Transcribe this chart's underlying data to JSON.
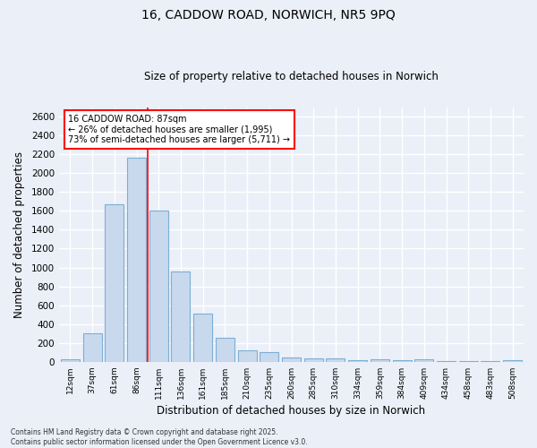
{
  "title_line1": "16, CADDOW ROAD, NORWICH, NR5 9PQ",
  "title_line2": "Size of property relative to detached houses in Norwich",
  "xlabel": "Distribution of detached houses by size in Norwich",
  "ylabel": "Number of detached properties",
  "categories": [
    "12sqm",
    "37sqm",
    "61sqm",
    "86sqm",
    "111sqm",
    "136sqm",
    "161sqm",
    "185sqm",
    "210sqm",
    "235sqm",
    "260sqm",
    "285sqm",
    "310sqm",
    "334sqm",
    "359sqm",
    "384sqm",
    "409sqm",
    "434sqm",
    "458sqm",
    "483sqm",
    "508sqm"
  ],
  "values": [
    25,
    300,
    1670,
    2160,
    1600,
    960,
    510,
    250,
    120,
    100,
    50,
    40,
    35,
    20,
    30,
    20,
    30,
    10,
    10,
    10,
    20
  ],
  "bar_color": "#c9d9ed",
  "bar_edge_color": "#7bafd4",
  "ylim": [
    0,
    2700
  ],
  "yticks": [
    0,
    200,
    400,
    600,
    800,
    1000,
    1200,
    1400,
    1600,
    1800,
    2000,
    2200,
    2400,
    2600
  ],
  "red_line_x": 3.5,
  "annotation_text_line1": "16 CADDOW ROAD: 87sqm",
  "annotation_text_line2": "← 26% of detached houses are smaller (1,995)",
  "annotation_text_line3": "73% of semi-detached houses are larger (5,711) →",
  "bg_color": "#eaeff8",
  "grid_color": "#ffffff",
  "footer_line1": "Contains HM Land Registry data © Crown copyright and database right 2025.",
  "footer_line2": "Contains public sector information licensed under the Open Government Licence v3.0."
}
